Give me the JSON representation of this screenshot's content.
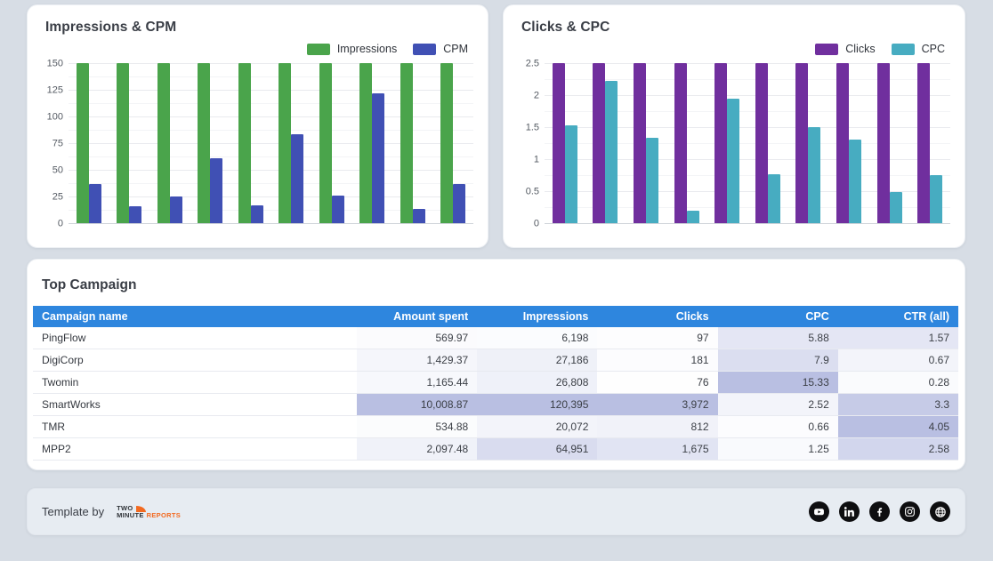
{
  "colors": {
    "page_bg": "#d7dde5",
    "card_bg": "#ffffff",
    "table_header_bg": "#2e86de",
    "heat_max": "#b9bfe2",
    "impressions_green": "#4aa44b",
    "cpm_indigo": "#4050b4",
    "clicks_purple": "#702f9e",
    "cpc_teal": "#47acc1",
    "logo_orange": "#f26a21"
  },
  "chart_data": [
    {
      "type": "bar",
      "title": "Impressions & CPM",
      "categories": [
        "",
        "",
        "",
        "",
        "",
        "",
        "",
        "",
        "",
        ""
      ],
      "series": [
        {
          "name": "Impressions",
          "color": "#4aa44b",
          "values": [
            150,
            150,
            150,
            150,
            150,
            150,
            150,
            150,
            150,
            150
          ]
        },
        {
          "name": "CPM",
          "color": "#4050b4",
          "values": [
            37,
            16,
            25,
            61,
            17,
            83,
            26,
            122,
            13,
            37
          ]
        }
      ],
      "ylim": [
        0,
        150
      ],
      "yticks": [
        0,
        25,
        50,
        75,
        100,
        125,
        150
      ],
      "ytick_labels": [
        "0",
        "25",
        "50",
        "75",
        "100",
        "125",
        "150"
      ],
      "xlabel": "",
      "ylabel": "",
      "grid": true,
      "legend_position": "top-right",
      "note": "Impressions bars are clipped at the y-axis max of 150"
    },
    {
      "type": "bar",
      "title": "Clicks & CPC",
      "categories": [
        "",
        "",
        "",
        "",
        "",
        "",
        "",
        "",
        "",
        ""
      ],
      "series": [
        {
          "name": "Clicks",
          "color": "#702f9e",
          "values": [
            2.5,
            2.5,
            2.5,
            2.5,
            2.5,
            2.5,
            2.5,
            2.5,
            2.5,
            2.5
          ]
        },
        {
          "name": "CPC",
          "color": "#47acc1",
          "values": [
            1.53,
            2.22,
            1.34,
            0.2,
            1.94,
            0.77,
            1.5,
            1.3,
            0.48,
            0.75
          ]
        }
      ],
      "ylim": [
        0,
        2.5
      ],
      "yticks": [
        0,
        0.5,
        1,
        1.5,
        2,
        2.5
      ],
      "ytick_labels": [
        "0",
        "0.5",
        "1",
        "1.5",
        "2",
        "2.5"
      ],
      "xlabel": "",
      "ylabel": "",
      "grid": true,
      "legend_position": "top-right",
      "note": "Clicks bars are clipped at the y-axis max of 2.5"
    }
  ],
  "table": {
    "title": "Top Campaign",
    "columns": [
      "Campaign name",
      "Amount spent",
      "Impressions",
      "Clicks",
      "CPC",
      "CTR (all)"
    ],
    "rows": [
      [
        "PingFlow",
        "569.97",
        "6,198",
        "97",
        "5.88",
        "1.57"
      ],
      [
        "DigiCorp",
        "1,429.37",
        "27,186",
        "181",
        "7.9",
        "0.67"
      ],
      [
        "Twomin",
        "1,165.44",
        "26,808",
        "76",
        "15.33",
        "0.28"
      ],
      [
        "SmartWorks",
        "10,008.87",
        "120,395",
        "3,972",
        "2.52",
        "3.3"
      ],
      [
        "TMR",
        "534.88",
        "20,072",
        "812",
        "0.66",
        "4.05"
      ],
      [
        "MPP2",
        "2,097.48",
        "64,951",
        "1,675",
        "1.25",
        "2.58"
      ]
    ],
    "heat_note": "numeric cells shaded lavender proportional to value within each column"
  },
  "footer": {
    "template_by": "Template by",
    "logo": {
      "line1": "TWO",
      "line2_dark": "MINUTE",
      "line2_orange": "REPORTS"
    },
    "social_icons": [
      "youtube-icon",
      "linkedin-icon",
      "facebook-icon",
      "instagram-icon",
      "globe-icon"
    ]
  }
}
